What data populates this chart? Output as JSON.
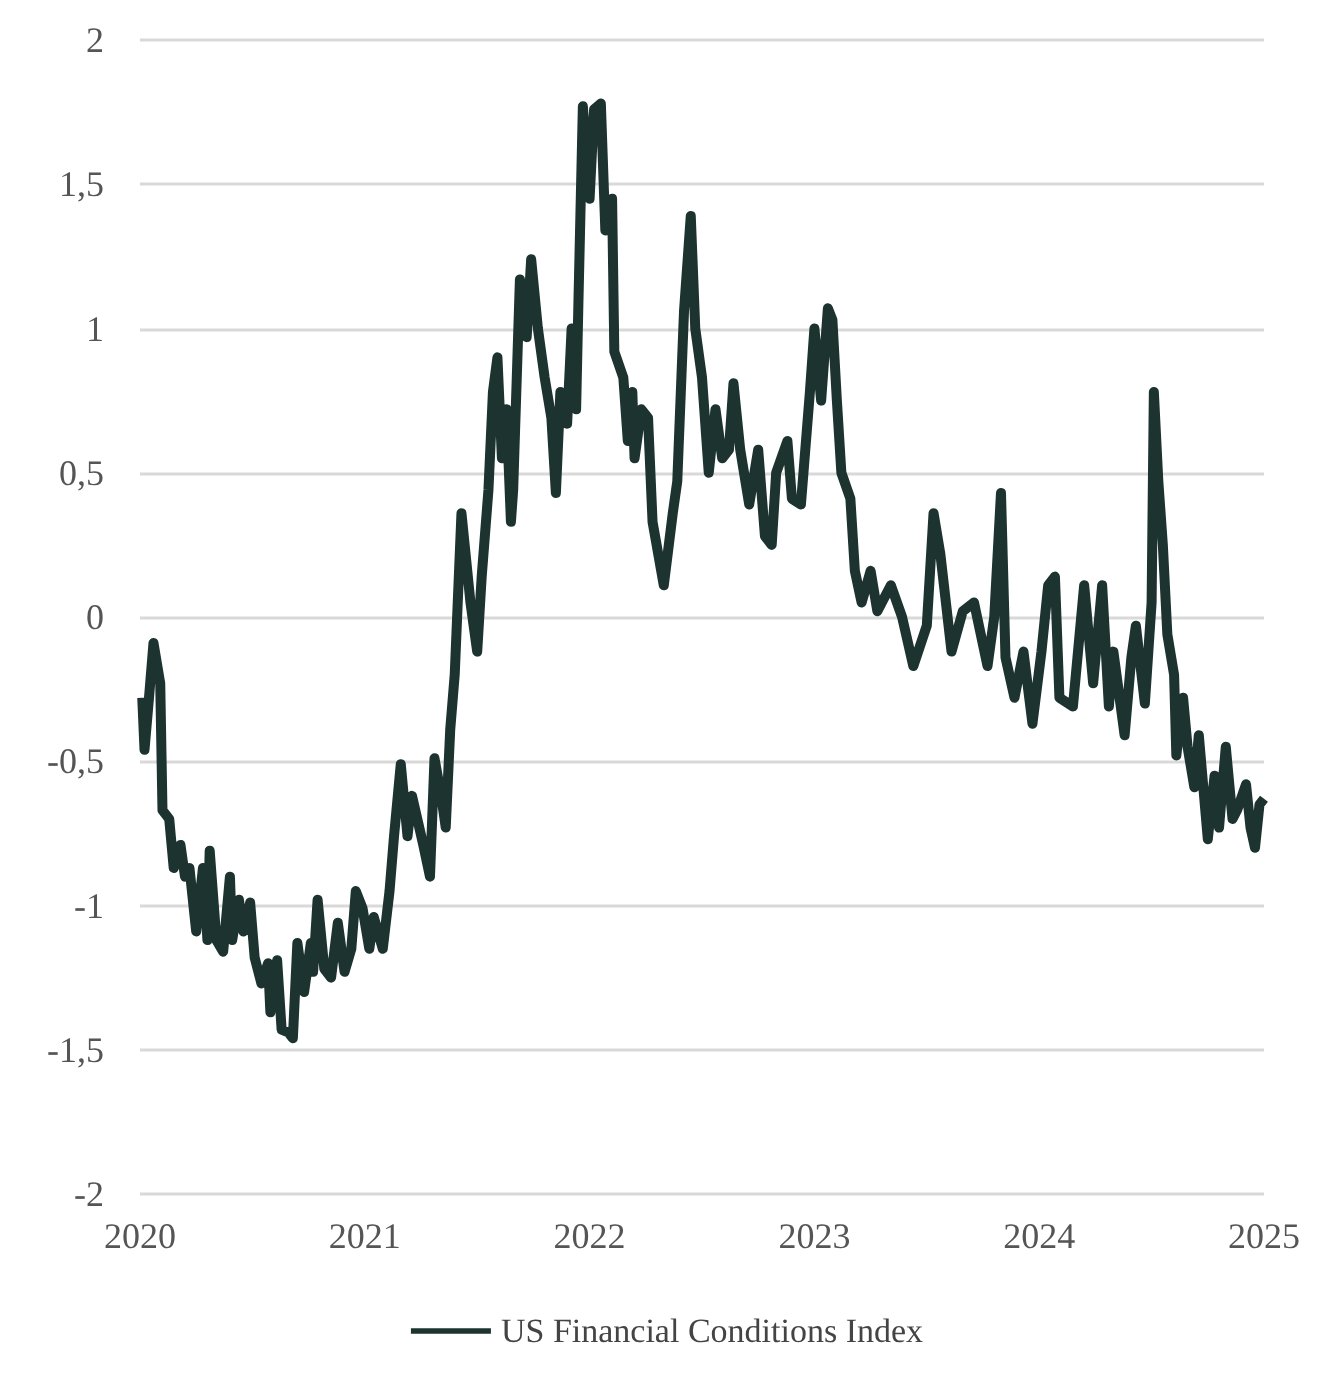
{
  "chart_data": {
    "type": "line",
    "legend": "bottom",
    "grid": "y",
    "marker": "none",
    "line_style": "solid",
    "xlim": [
      2020,
      2025
    ],
    "xticks": [
      2020,
      2021,
      2022,
      2023,
      2024,
      2025
    ],
    "ylim": [
      -2,
      2
    ],
    "yticks": [
      {
        "value": -2,
        "label": "-2"
      },
      {
        "value": -1.5,
        "label": "-1,5"
      },
      {
        "value": -1,
        "label": "-1"
      },
      {
        "value": -0.5,
        "label": "-0,5"
      },
      {
        "value": 0,
        "label": "0"
      },
      {
        "value": 0.5,
        "label": "0,5"
      },
      {
        "value": 1,
        "label": "1"
      },
      {
        "value": 1.5,
        "label": "1,5"
      },
      {
        "value": 2,
        "label": "2"
      }
    ],
    "series": [
      {
        "name": "US Financial Conditions Index",
        "color": "#1c3330",
        "x": [
          2020.01,
          2020.02,
          2020.04,
          2020.06,
          2020.09,
          2020.1,
          2020.13,
          2020.15,
          2020.18,
          2020.2,
          2020.22,
          2020.25,
          2020.28,
          2020.3,
          2020.31,
          2020.34,
          2020.37,
          2020.4,
          2020.41,
          2020.44,
          2020.46,
          2020.49,
          2020.51,
          2020.54,
          2020.57,
          2020.58,
          2020.61,
          2020.63,
          2020.66,
          2020.68,
          2020.7,
          2020.73,
          2020.76,
          2020.77,
          2020.79,
          2020.82,
          2020.85,
          2020.88,
          2020.91,
          2020.94,
          2020.96,
          2020.99,
          2021.02,
          2021.04,
          2021.08,
          2021.11,
          2021.13,
          2021.16,
          2021.19,
          2021.21,
          2021.26,
          2021.29,
          2021.31,
          2021.34,
          2021.36,
          2021.38,
          2021.4,
          2021.43,
          2021.47,
          2021.5,
          2021.52,
          2021.55,
          2021.57,
          2021.59,
          2021.61,
          2021.63,
          2021.65,
          2021.66,
          2021.69,
          2021.72,
          2021.74,
          2021.77,
          2021.8,
          2021.83,
          2021.85,
          2021.87,
          2021.9,
          2021.92,
          2021.94,
          2021.95,
          2021.97,
          2022.0,
          2022.02,
          2022.05,
          2022.07,
          2022.1,
          2022.11,
          2022.15,
          2022.17,
          2022.19,
          2022.2,
          2022.23,
          2022.26,
          2022.28,
          2022.33,
          2022.37,
          2022.39,
          2022.42,
          2022.45,
          2022.47,
          2022.5,
          2022.53,
          2022.56,
          2022.59,
          2022.62,
          2022.64,
          2022.67,
          2022.71,
          2022.75,
          2022.78,
          2022.81,
          2022.83,
          2022.88,
          2022.9,
          2022.94,
          2022.98,
          2023.0,
          2023.03,
          2023.06,
          2023.08,
          2023.1,
          2023.12,
          2023.16,
          2023.18,
          2023.21,
          2023.25,
          2023.28,
          2023.34,
          2023.39,
          2023.44,
          2023.5,
          2023.53,
          2023.56,
          2023.61,
          2023.66,
          2023.71,
          2023.77,
          2023.8,
          2023.83,
          2023.85,
          2023.89,
          2023.93,
          2023.97,
          2024.01,
          2024.04,
          2024.07,
          2024.09,
          2024.15,
          2024.2,
          2024.24,
          2024.28,
          2024.31,
          2024.33,
          2024.38,
          2024.41,
          2024.43,
          2024.47,
          2024.5,
          2024.51,
          2024.53,
          2024.55,
          2024.57,
          2024.6,
          2024.61,
          2024.64,
          2024.66,
          2024.69,
          2024.71,
          2024.75,
          2024.78,
          2024.8,
          2024.83,
          2024.86,
          2024.88,
          2024.92,
          2024.94,
          2024.96,
          2024.98,
          2025.0
        ],
        "values": [
          -0.28,
          -0.46,
          -0.28,
          -0.09,
          -0.23,
          -0.67,
          -0.7,
          -0.87,
          -0.79,
          -0.9,
          -0.87,
          -1.09,
          -0.87,
          -1.12,
          -0.81,
          -1.12,
          -1.16,
          -0.9,
          -1.12,
          -0.98,
          -1.09,
          -0.99,
          -1.18,
          -1.27,
          -1.2,
          -1.37,
          -1.19,
          -1.43,
          -1.44,
          -1.46,
          -1.13,
          -1.3,
          -1.13,
          -1.23,
          -0.98,
          -1.22,
          -1.25,
          -1.06,
          -1.23,
          -1.15,
          -0.95,
          -1.01,
          -1.15,
          -1.04,
          -1.15,
          -0.95,
          -0.76,
          -0.51,
          -0.76,
          -0.62,
          -0.79,
          -0.9,
          -0.49,
          -0.62,
          -0.73,
          -0.39,
          -0.2,
          0.36,
          0.05,
          -0.12,
          0.14,
          0.44,
          0.78,
          0.9,
          0.55,
          0.72,
          0.33,
          0.44,
          1.17,
          0.97,
          1.24,
          1.0,
          0.83,
          0.69,
          0.43,
          0.78,
          0.67,
          1.0,
          0.72,
          1.08,
          1.77,
          1.45,
          1.76,
          1.78,
          1.34,
          1.45,
          0.92,
          0.83,
          0.61,
          0.78,
          0.55,
          0.72,
          0.69,
          0.33,
          0.11,
          0.36,
          0.47,
          1.06,
          1.39,
          1.0,
          0.83,
          0.5,
          0.72,
          0.55,
          0.58,
          0.81,
          0.58,
          0.39,
          0.58,
          0.28,
          0.25,
          0.5,
          0.61,
          0.41,
          0.39,
          0.78,
          1.0,
          0.75,
          1.07,
          1.03,
          0.75,
          0.5,
          0.41,
          0.16,
          0.05,
          0.16,
          0.02,
          0.11,
          0.0,
          -0.17,
          -0.03,
          0.36,
          0.22,
          -0.12,
          0.02,
          0.05,
          -0.17,
          0.0,
          0.43,
          -0.14,
          -0.28,
          -0.12,
          -0.37,
          -0.12,
          0.11,
          0.14,
          -0.28,
          -0.31,
          0.11,
          -0.23,
          0.11,
          -0.31,
          -0.12,
          -0.41,
          -0.14,
          -0.03,
          -0.3,
          0.05,
          0.78,
          0.47,
          0.25,
          -0.06,
          -0.2,
          -0.48,
          -0.28,
          -0.45,
          -0.59,
          -0.41,
          -0.77,
          -0.55,
          -0.73,
          -0.45,
          -0.7,
          -0.67,
          -0.58,
          -0.73,
          -0.8,
          -0.65,
          -0.63
        ]
      }
    ]
  }
}
